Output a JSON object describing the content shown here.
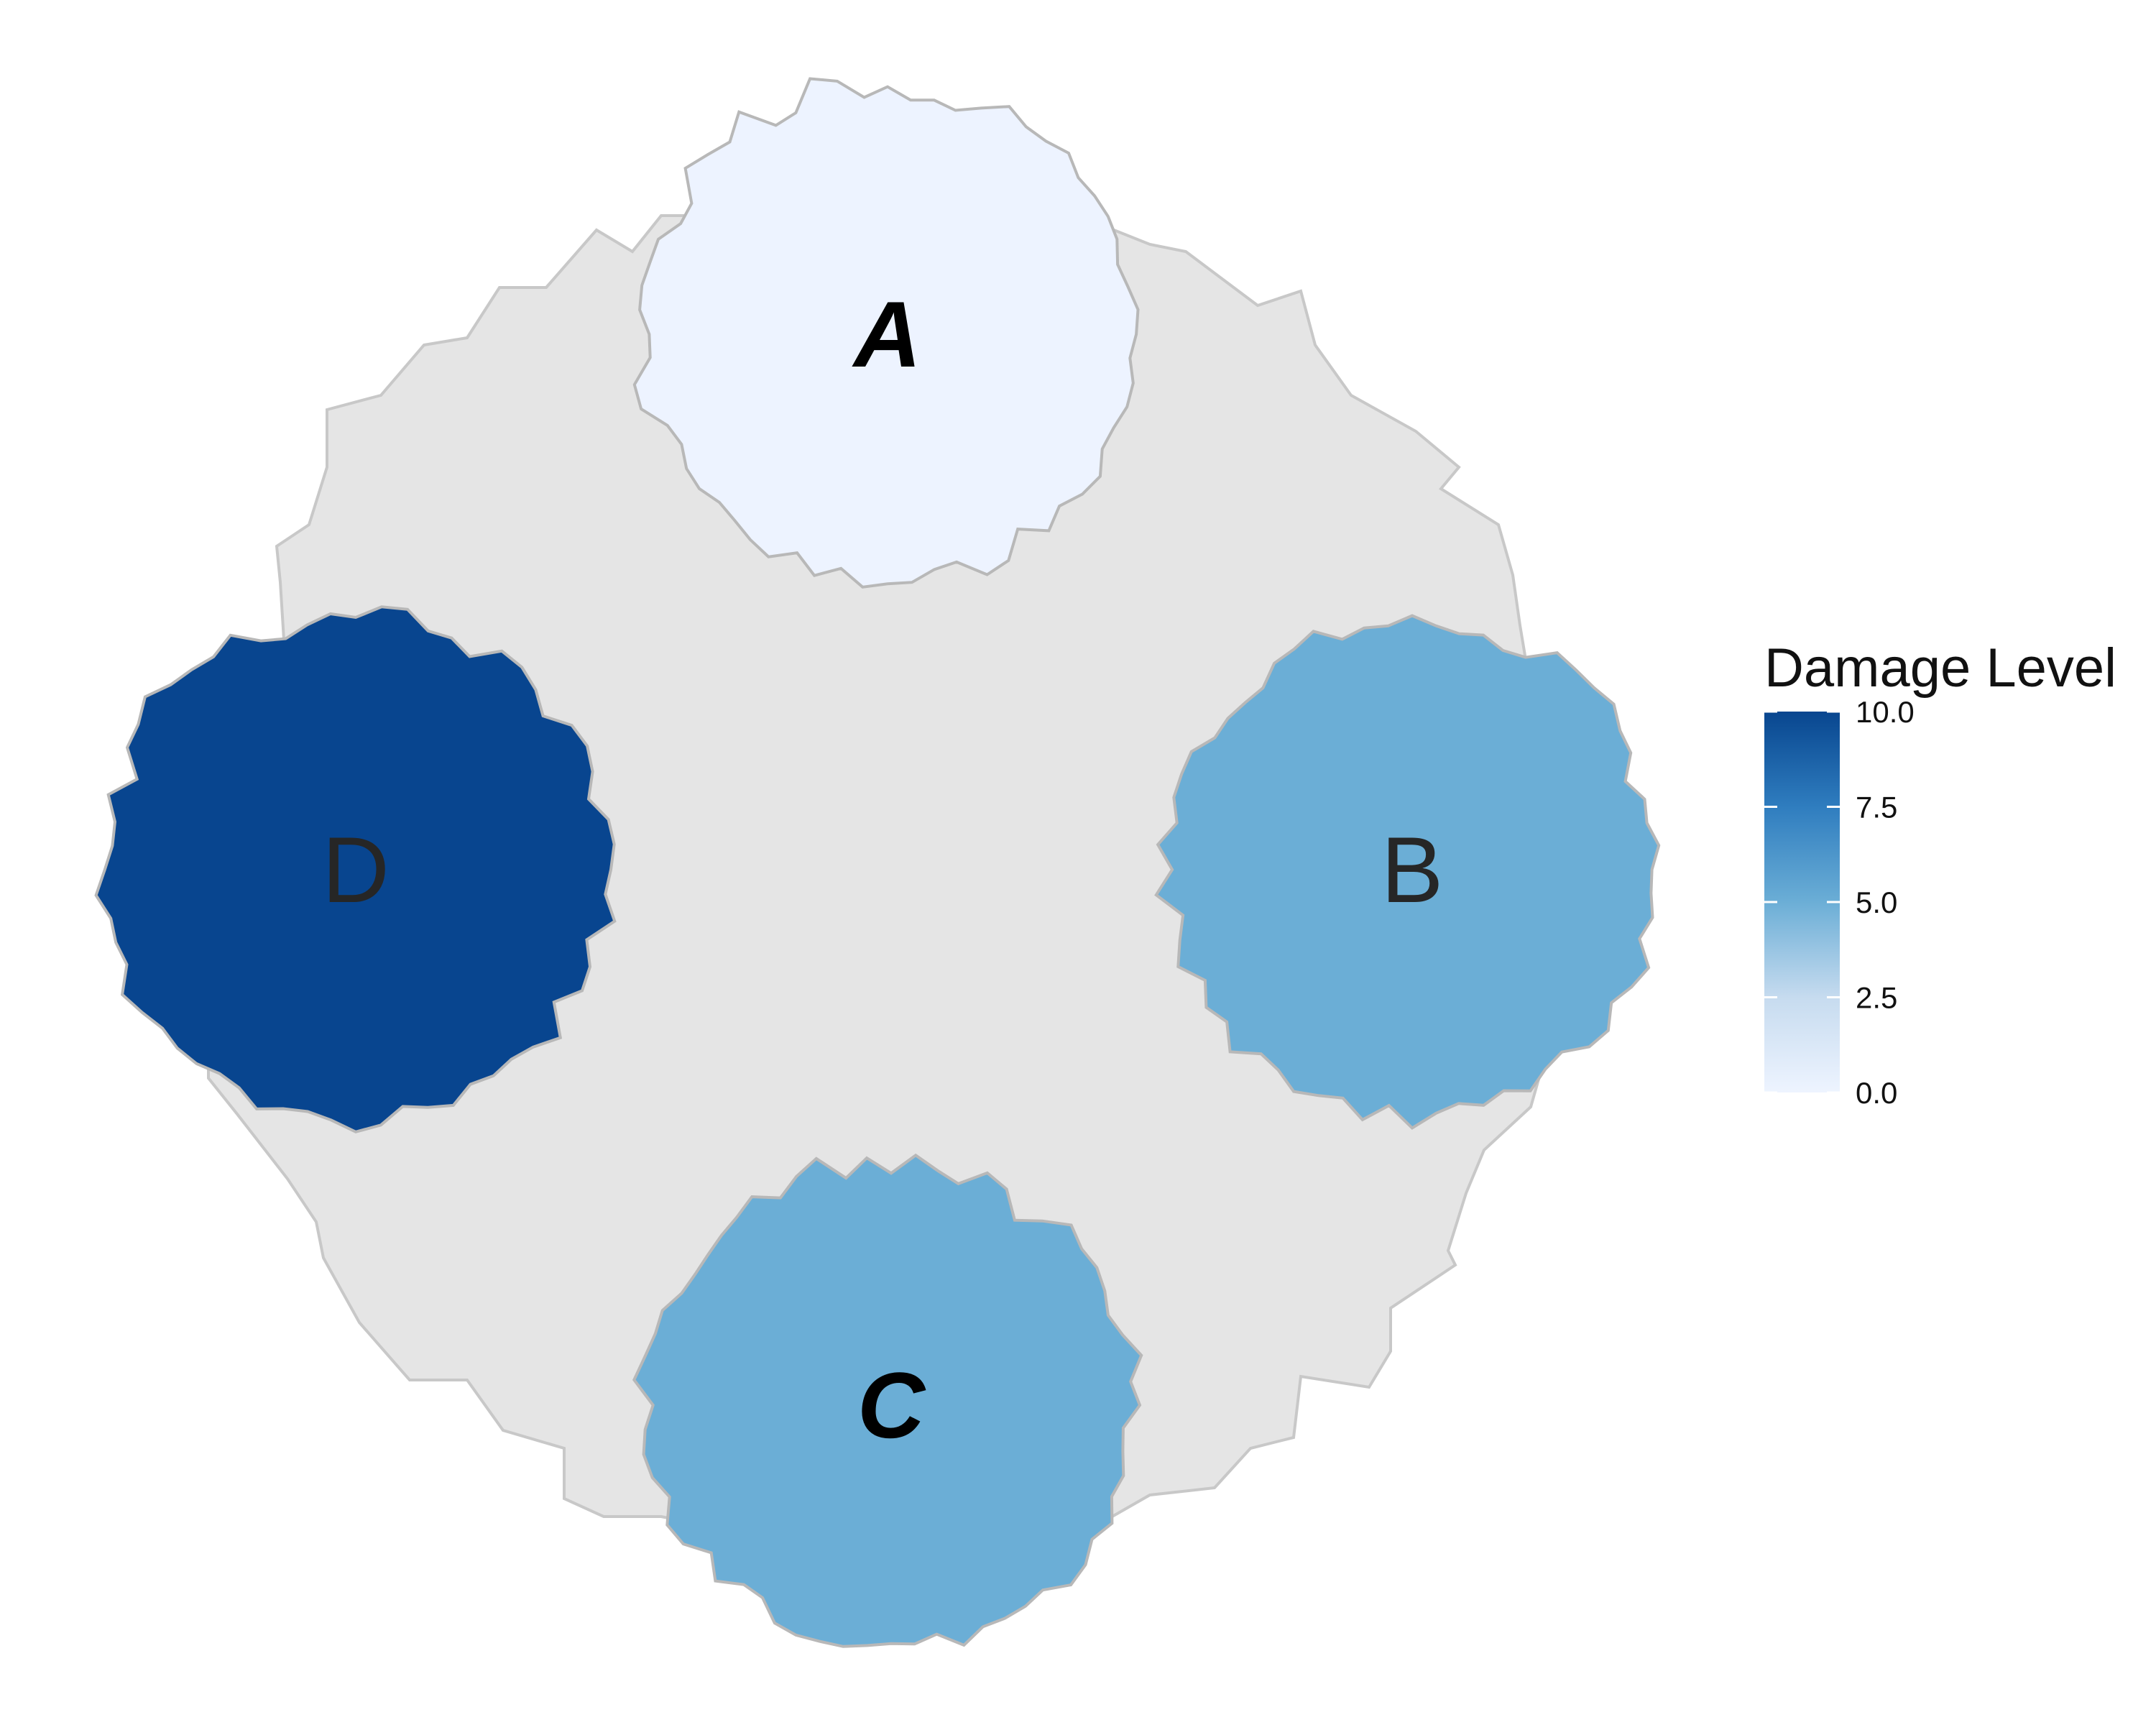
{
  "legend": {
    "title": "Damage Level",
    "min": 0.0,
    "max": 10.0,
    "ticks": [
      "0.0",
      "2.5",
      "5.0",
      "7.5",
      "10.0"
    ],
    "tick_values": [
      0,
      2.5,
      5,
      7.5,
      10
    ],
    "color_low": "#eef4ff",
    "color_high": "#08468f"
  },
  "background_region": {
    "color": "#e5e5e5",
    "stroke": "#c8c8c8"
  },
  "regions": [
    {
      "id": "A",
      "label": "A",
      "value": 0.2,
      "color": "#edf3ff",
      "label_style": "bold-italic"
    },
    {
      "id": "B",
      "label": "B",
      "value": 5.6,
      "color": "#6baed6",
      "label_style": "regular"
    },
    {
      "id": "C",
      "label": "C",
      "value": 5.6,
      "color": "#6baed6",
      "label_style": "bold-italic"
    },
    {
      "id": "D",
      "label": "D",
      "value": 10.0,
      "color": "#08458f",
      "label_style": "regular"
    }
  ]
}
